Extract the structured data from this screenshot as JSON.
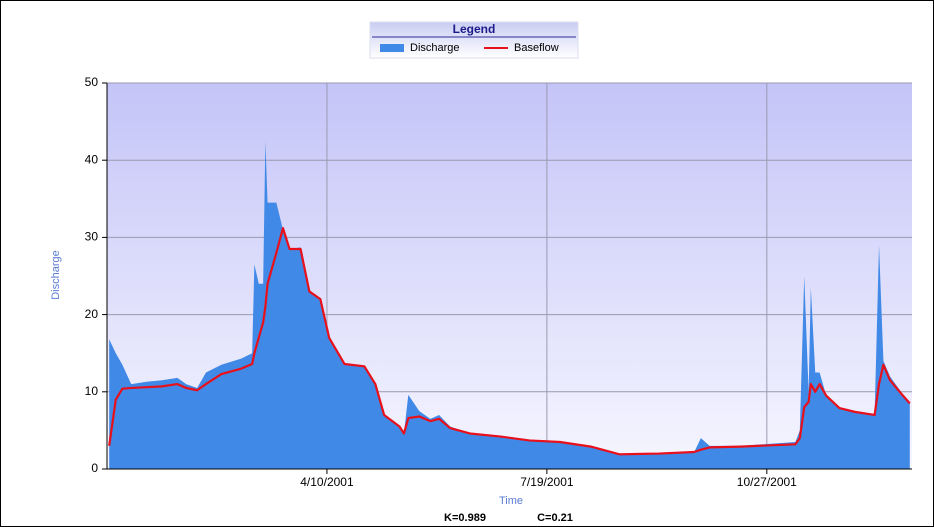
{
  "chart_data": {
    "type": "area-line",
    "legend_title": "Legend",
    "x_label": "Time",
    "y_label": "Discharge",
    "annotations": [
      "K=0.989",
      "C=0.21"
    ],
    "xlim": [
      "12/31/2000",
      "1/1/2002"
    ],
    "xticks": [
      "4/10/2001",
      "7/19/2001",
      "10/27/2001"
    ],
    "ylim": [
      0,
      50
    ],
    "yticks": [
      0,
      10,
      20,
      30,
      40,
      50
    ],
    "grid": true,
    "x": [
      "1/1/2001",
      "1/4/2001",
      "1/7/2001",
      "1/11/2001",
      "1/18/2001",
      "1/25/2001",
      "2/1/2001",
      "2/5/2001",
      "2/10/2001",
      "2/14/2001",
      "2/21/2001",
      "3/2/2001",
      "3/7/2001",
      "3/8/2001",
      "3/10/2001",
      "3/12/2001",
      "3/13/2001",
      "3/14/2001",
      "3/18/2001",
      "3/21/2001",
      "3/24/2001",
      "3/29/2001",
      "4/2/2001",
      "4/7/2001",
      "4/11/2001",
      "4/18/2001",
      "4/27/2001",
      "5/2/2001",
      "5/6/2001",
      "5/13/2001",
      "5/15/2001",
      "5/17/2001",
      "5/22/2001",
      "5/27/2001",
      "5/31/2001",
      "6/5/2001",
      "6/14/2001",
      "6/28/2001",
      "7/11/2001",
      "7/25/2001",
      "8/8/2001",
      "8/21/2001",
      "9/8/2001",
      "9/24/2001",
      "9/27/2001",
      "10/1/2001",
      "10/15/2001",
      "11/9/2001",
      "11/11/2001",
      "11/13/2001",
      "11/15/2001",
      "11/16/2001",
      "11/18/2001",
      "11/20/2001",
      "11/23/2001",
      "11/29/2001",
      "12/6/2001",
      "12/15/2001",
      "12/17/2001",
      "12/19/2001",
      "12/22/2001",
      "12/27/2001",
      "12/31/2001"
    ],
    "series": [
      {
        "name": "Discharge",
        "color": "#4189e6",
        "kind": "area",
        "values": [
          16.8,
          15,
          13.5,
          11,
          11.3,
          11.5,
          11.8,
          11,
          10.5,
          12.5,
          13.5,
          14.3,
          15,
          26.5,
          24,
          24,
          42.5,
          34.5,
          34.5,
          31,
          28.5,
          28.7,
          23,
          22,
          17,
          13.6,
          13.3,
          11,
          7,
          5.5,
          4.6,
          9.6,
          7.5,
          6.5,
          7,
          5.5,
          4.6,
          4.2,
          3.8,
          3.5,
          2.9,
          1.9,
          2,
          2.2,
          4,
          3,
          3,
          3.5,
          5,
          25,
          10,
          23.5,
          12.5,
          12.5,
          9.5,
          8,
          7.5,
          7,
          29,
          14,
          12,
          10,
          8.5
        ]
      },
      {
        "name": "Baseflow",
        "color": "#e8101a",
        "kind": "line",
        "values": [
          3,
          9,
          10.4,
          10.5,
          10.6,
          10.7,
          11,
          10.5,
          10.2,
          11,
          12.3,
          13,
          13.6,
          15,
          17,
          19,
          21,
          24,
          28,
          31.2,
          28.5,
          28.5,
          23,
          22,
          17,
          13.6,
          13.3,
          11,
          7,
          5.5,
          4.6,
          6.6,
          6.8,
          6.2,
          6.5,
          5.3,
          4.6,
          4.2,
          3.7,
          3.5,
          2.9,
          1.9,
          2,
          2.2,
          2.5,
          2.8,
          2.9,
          3.2,
          4,
          8,
          8.7,
          11,
          10,
          11,
          9.5,
          7.9,
          7.4,
          7,
          11,
          13.5,
          11.5,
          9.8,
          8.5
        ]
      }
    ]
  }
}
